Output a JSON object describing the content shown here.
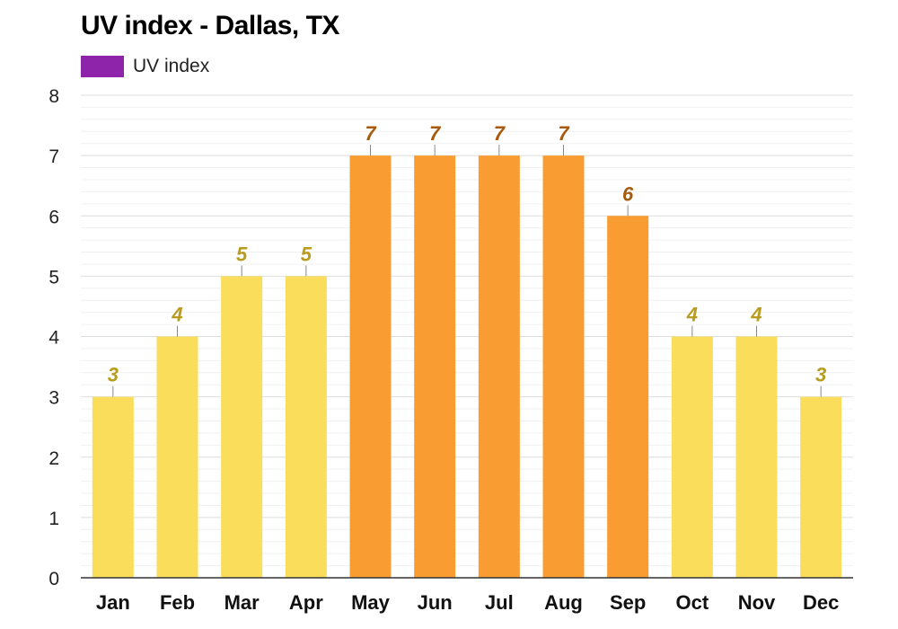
{
  "chart_data": {
    "type": "bar",
    "title": "UV index - Dallas, TX",
    "categories": [
      "Jan",
      "Feb",
      "Mar",
      "Apr",
      "May",
      "Jun",
      "Jul",
      "Aug",
      "Sep",
      "Oct",
      "Nov",
      "Dec"
    ],
    "series": [
      {
        "name": "UV index",
        "values": [
          3,
          4,
          5,
          5,
          7,
          7,
          7,
          7,
          6,
          4,
          4,
          3
        ]
      }
    ],
    "ylim": [
      0,
      8
    ],
    "yticks": [
      0,
      1,
      2,
      3,
      4,
      5,
      6,
      7,
      8
    ],
    "xlabel": "",
    "ylabel": "",
    "grid": true,
    "legend": "top-left",
    "colors": {
      "legend_swatch": "#8e24aa",
      "moderate_bar": "#fbdd5c",
      "moderate_label": "#b89c1e",
      "high_bar": "#f99d33",
      "high_label": "#a85a0c",
      "axis": "#333333",
      "grid_major": "#dddddd",
      "grid_minor": "#f0f0f0"
    },
    "high_threshold": 6
  }
}
